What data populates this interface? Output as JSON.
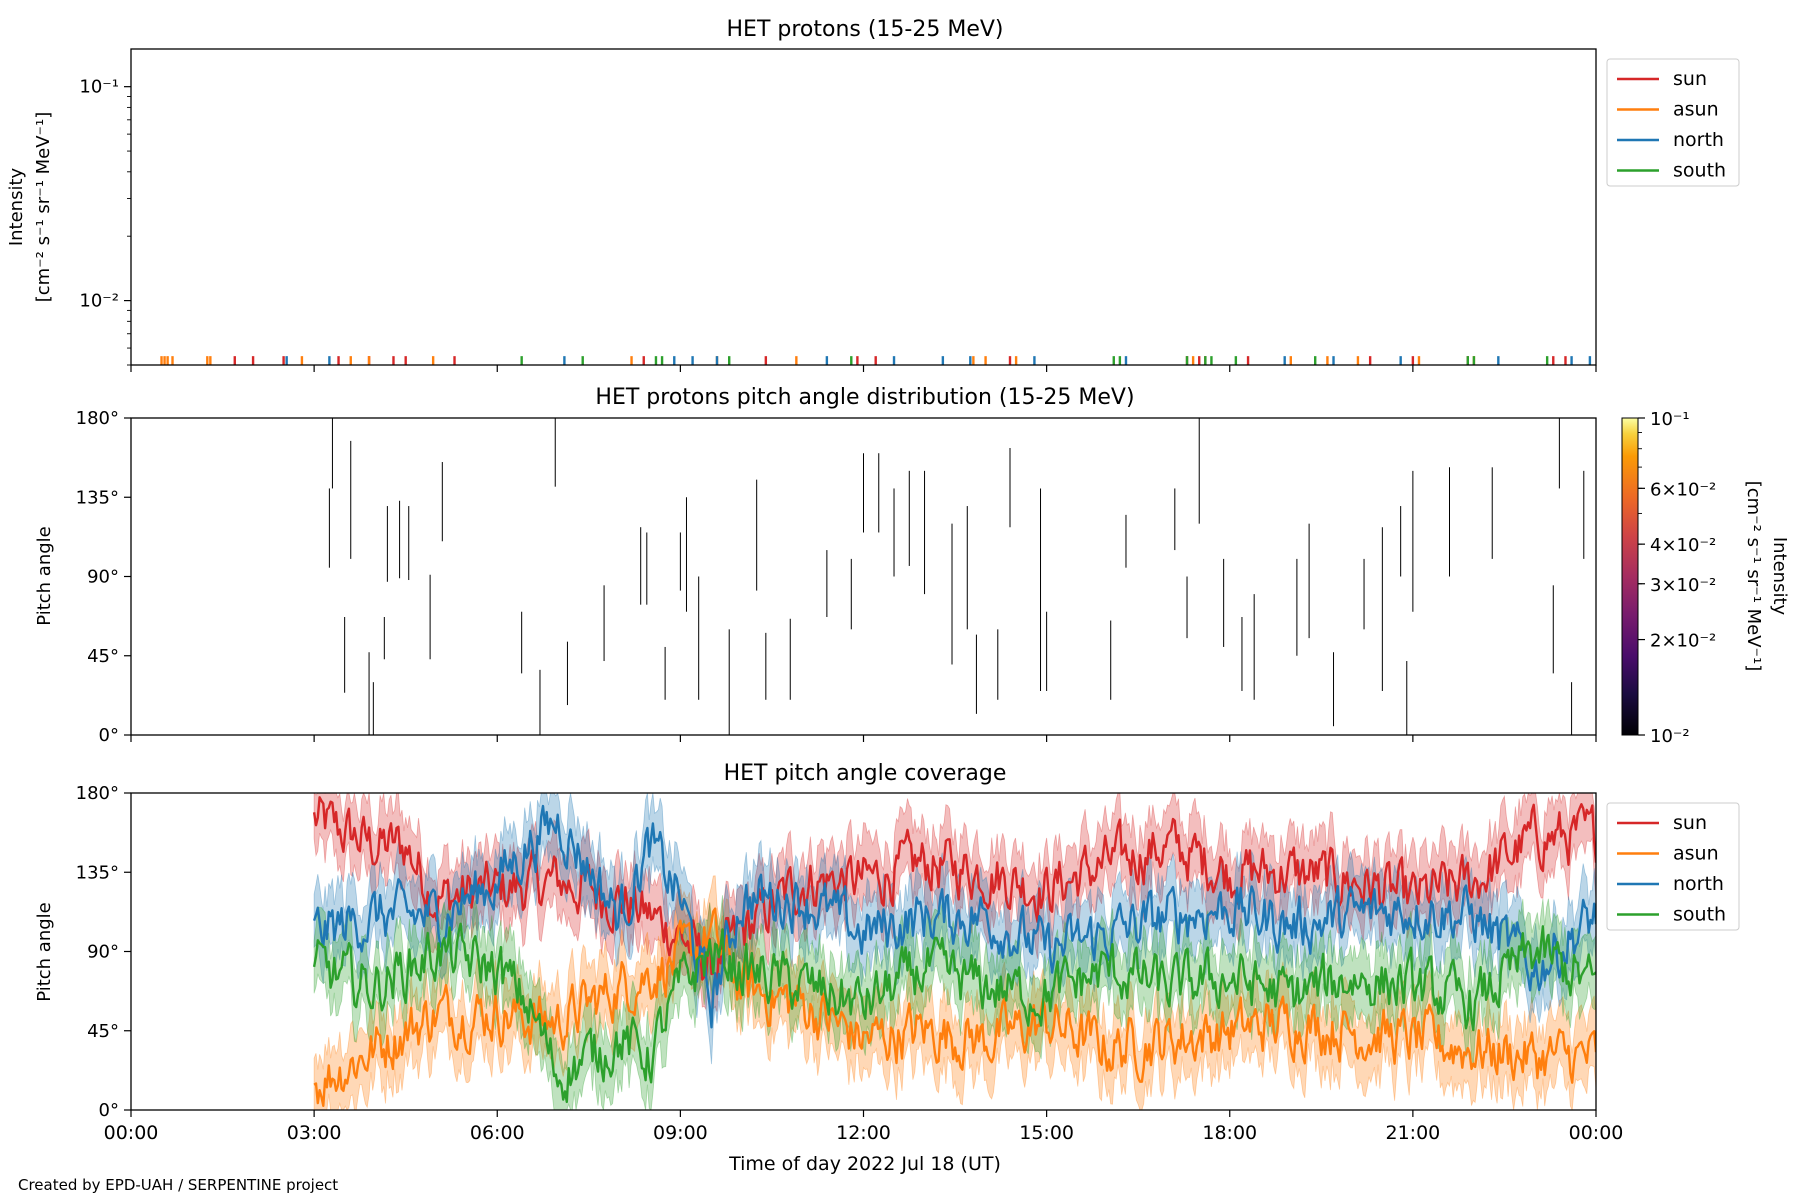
{
  "footer": "Created by EPD-UAH / SERPENTINE project",
  "colors": {
    "sun": "#d62728",
    "asun": "#ff7f0e",
    "north": "#1f77b4",
    "south": "#2ca02c"
  },
  "chart_data": [
    {
      "type": "line",
      "title": "HET protons (15-25 MeV)",
      "ylabel_line1": "Intensity",
      "ylabel_line2": "[cm⁻² s⁻¹ sr⁻¹ MeV⁻¹]",
      "yscale": "log",
      "ylim": [
        0.005,
        0.15
      ],
      "yticks": [
        {
          "value": 0.01,
          "label": "10⁻²"
        },
        {
          "value": 0.1,
          "label": "10⁻¹"
        }
      ],
      "xlim_hours": [
        0,
        24
      ],
      "legend": {
        "placement": "outside-right",
        "entries": [
          "sun",
          "asun",
          "north",
          "south"
        ]
      },
      "series": [
        {
          "name": "sun",
          "color": "#d62728",
          "spike_value": 0.0055,
          "times_hours": [
            1.7,
            2.0,
            2.5,
            3.4,
            3.9,
            4.3,
            4.5,
            5.3,
            8.4,
            10.4,
            11.9,
            12.2,
            14.4,
            17.3,
            17.5,
            17.6,
            18.3,
            20.3,
            21.0,
            21.9,
            23.3,
            23.5
          ]
        },
        {
          "name": "asun",
          "color": "#ff7f0e",
          "spike_value": 0.0055,
          "times_hours": [
            0.5,
            0.55,
            0.6,
            0.68,
            1.25,
            1.3,
            2.8,
            3.6,
            3.9,
            4.95,
            8.2,
            9.6,
            10.9,
            13.8,
            14.0,
            14.5,
            17.4,
            19.0,
            19.6,
            20.1,
            21.1,
            22.0
          ]
        },
        {
          "name": "north",
          "color": "#1f77b4",
          "spike_value": 0.0055,
          "times_hours": [
            2.55,
            3.25,
            7.1,
            8.9,
            9.2,
            9.6,
            11.4,
            12.5,
            13.3,
            13.75,
            14.8,
            16.3,
            18.9,
            19.7,
            20.8,
            22.4,
            23.6,
            23.9
          ]
        },
        {
          "name": "south",
          "color": "#2ca02c",
          "spike_value": 0.0055,
          "times_hours": [
            6.4,
            7.4,
            8.6,
            8.7,
            9.8,
            11.8,
            16.1,
            16.2,
            17.3,
            17.6,
            17.7,
            18.1,
            19.4,
            21.9,
            22.0,
            23.2
          ]
        }
      ]
    },
    {
      "type": "heatmap",
      "title": "HET protons pitch angle distribution (15-25 MeV)",
      "ylabel": "Pitch angle",
      "ylim": [
        0,
        180
      ],
      "yticks": [
        "0°",
        "45°",
        "90°",
        "135°",
        "180°"
      ],
      "xlim_hours": [
        0,
        24
      ],
      "colorbar": {
        "label_line1": "Intensity",
        "label_line2": "[cm⁻² s⁻¹ sr⁻¹ MeV⁻¹]",
        "scale": "log",
        "range": [
          0.01,
          0.1
        ],
        "ticks": [
          {
            "value": 0.01,
            "label": "10⁻²"
          },
          {
            "value": 0.02,
            "label": "2×10⁻²"
          },
          {
            "value": 0.03,
            "label": "3×10⁻²"
          },
          {
            "value": 0.04,
            "label": "4×10⁻²"
          },
          {
            "value": 0.06,
            "label": "6×10⁻²"
          },
          {
            "value": 0.1,
            "label": "10⁻¹"
          }
        ]
      },
      "segments": [
        [
          3.25,
          95,
          140
        ],
        [
          3.3,
          140,
          180
        ],
        [
          3.5,
          24,
          67
        ],
        [
          3.6,
          100,
          167
        ],
        [
          3.9,
          0,
          47
        ],
        [
          3.97,
          0,
          30
        ],
        [
          4.15,
          43,
          67
        ],
        [
          4.2,
          87,
          130
        ],
        [
          4.4,
          89,
          133
        ],
        [
          4.55,
          88,
          130
        ],
        [
          4.9,
          43,
          91
        ],
        [
          5.1,
          110,
          155
        ],
        [
          6.4,
          35,
          70
        ],
        [
          6.7,
          0,
          37
        ],
        [
          6.95,
          141,
          180
        ],
        [
          7.15,
          17,
          53
        ],
        [
          7.75,
          42,
          85
        ],
        [
          8.35,
          74,
          118
        ],
        [
          8.45,
          74,
          115
        ],
        [
          8.75,
          20,
          50
        ],
        [
          9.0,
          82,
          115
        ],
        [
          9.1,
          70,
          135
        ],
        [
          9.3,
          20,
          90
        ],
        [
          9.8,
          0,
          60
        ],
        [
          10.25,
          82,
          145
        ],
        [
          10.4,
          20,
          58
        ],
        [
          10.8,
          20,
          66
        ],
        [
          11.4,
          67,
          105
        ],
        [
          11.8,
          60,
          100
        ],
        [
          12.0,
          115,
          160
        ],
        [
          12.25,
          115,
          160
        ],
        [
          12.5,
          90,
          140
        ],
        [
          12.75,
          96,
          150
        ],
        [
          13.0,
          80,
          150
        ],
        [
          13.45,
          40,
          120
        ],
        [
          13.7,
          60,
          130
        ],
        [
          13.85,
          12,
          57
        ],
        [
          14.2,
          20,
          60
        ],
        [
          14.4,
          118,
          163
        ],
        [
          14.9,
          25,
          140
        ],
        [
          15.0,
          25,
          70
        ],
        [
          16.05,
          20,
          65
        ],
        [
          16.3,
          95,
          125
        ],
        [
          17.1,
          105,
          140
        ],
        [
          17.3,
          55,
          90
        ],
        [
          17.5,
          120,
          180
        ],
        [
          17.9,
          50,
          100
        ],
        [
          18.2,
          25,
          67
        ],
        [
          18.4,
          20,
          80
        ],
        [
          19.1,
          45,
          100
        ],
        [
          19.3,
          55,
          120
        ],
        [
          19.7,
          5,
          47
        ],
        [
          20.2,
          60,
          100
        ],
        [
          20.5,
          25,
          118
        ],
        [
          20.8,
          90,
          130
        ],
        [
          20.9,
          0,
          42
        ],
        [
          21.0,
          70,
          150
        ],
        [
          21.6,
          90,
          152
        ],
        [
          22.3,
          100,
          152
        ],
        [
          23.3,
          35,
          85
        ],
        [
          23.4,
          140,
          180
        ],
        [
          23.6,
          0,
          30
        ],
        [
          23.8,
          100,
          150
        ]
      ]
    },
    {
      "type": "line",
      "title": "HET pitch angle coverage",
      "ylabel": "Pitch angle",
      "xlabel": "Time of day 2022 Jul 18 (UT)",
      "ylim": [
        0,
        180
      ],
      "yticks": [
        "0°",
        "45°",
        "90°",
        "135°",
        "180°"
      ],
      "xlim_hours": [
        0,
        24
      ],
      "xticks": [
        "00:00",
        "03:00",
        "06:00",
        "09:00",
        "12:00",
        "15:00",
        "18:00",
        "21:00",
        "00:00"
      ],
      "legend": {
        "placement": "outside-right",
        "entries": [
          "sun",
          "asun",
          "north",
          "south"
        ]
      },
      "data_start_hour": 3.0,
      "band_halfwidth_deg": 15,
      "series": [
        {
          "name": "sun",
          "color": "#d62728",
          "key_times_hours": [
            3,
            4,
            4.5,
            5,
            6,
            7,
            8,
            9,
            9.5,
            10,
            11,
            12,
            13,
            14,
            15,
            16,
            17,
            18,
            19,
            20,
            21,
            22,
            23,
            24
          ],
          "key_values_deg": [
            165,
            150,
            150,
            120,
            125,
            130,
            120,
            100,
            80,
            100,
            130,
            130,
            140,
            135,
            125,
            140,
            150,
            135,
            135,
            130,
            120,
            130,
            155,
            155
          ]
        },
        {
          "name": "asun",
          "color": "#ff7f0e",
          "key_times_hours": [
            3,
            4,
            5,
            6,
            7,
            8,
            9,
            9.5,
            10,
            11,
            12,
            13,
            14,
            15,
            16,
            17,
            18,
            19,
            20,
            21,
            22,
            23,
            24
          ],
          "key_values_deg": [
            15,
            35,
            55,
            55,
            50,
            70,
            85,
            100,
            70,
            60,
            40,
            45,
            40,
            50,
            35,
            40,
            45,
            50,
            45,
            40,
            35,
            30,
            30
          ]
        },
        {
          "name": "north",
          "color": "#1f77b4",
          "key_times_hours": [
            3,
            4,
            5,
            6,
            6.5,
            7,
            8,
            8.5,
            9,
            9.5,
            10,
            11,
            12,
            13,
            14,
            15,
            16,
            17,
            18,
            19,
            20,
            21,
            22,
            23,
            24
          ],
          "key_values_deg": [
            100,
            110,
            110,
            130,
            150,
            165,
            110,
            150,
            120,
            60,
            120,
            120,
            100,
            110,
            110,
            90,
            100,
            110,
            115,
            105,
            110,
            115,
            110,
            80,
            110
          ]
        },
        {
          "name": "south",
          "color": "#2ca02c",
          "key_times_hours": [
            3,
            4,
            5,
            6,
            6.5,
            7,
            8,
            8.5,
            9,
            9.5,
            10,
            11,
            12,
            13,
            14,
            15,
            16,
            17,
            18,
            19,
            20,
            21,
            22,
            23,
            24
          ],
          "key_values_deg": [
            80,
            70,
            90,
            80,
            60,
            20,
            40,
            30,
            70,
            90,
            80,
            70,
            60,
            80,
            70,
            65,
            80,
            70,
            75,
            65,
            75,
            70,
            60,
            90,
            70
          ]
        }
      ]
    }
  ]
}
